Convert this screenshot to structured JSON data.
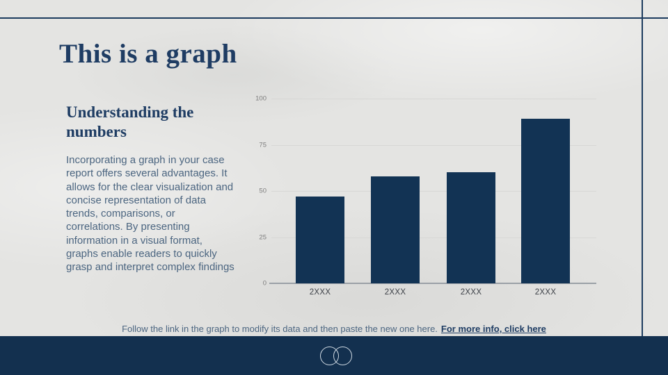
{
  "slide": {
    "title": "This is a graph",
    "section_heading": "Understanding the numbers",
    "body_text": "Incorporating a graph in your case report offers several advantages. It allows for the clear visualization and concise representation of data trends, comparisons, or correlations. By presenting information in a visual format, graphs enable readers to quickly grasp and interpret complex findings",
    "footer": {
      "note": "Follow the link in the graph to modify its data and then paste the new one here.",
      "link_text": "For more info, click here"
    }
  },
  "chart_data": {
    "type": "bar",
    "categories": [
      "2XXX",
      "2XXX",
      "2XXX",
      "2XXX"
    ],
    "values": [
      47,
      58,
      60,
      89
    ],
    "title": "",
    "xlabel": "",
    "ylabel": "",
    "ylim": [
      0,
      100
    ],
    "y_ticks": [
      0,
      25,
      50,
      75,
      100
    ],
    "grid": true,
    "legend": "none",
    "bar_color": "#123354"
  },
  "colors": {
    "background": "#e4e4e2",
    "accent_navy": "#1c3b5e",
    "title_text": "#1e3c63",
    "body_text": "#4b6580",
    "grid_line": "#d7d7d5",
    "axis_line": "#9aa0a6",
    "tick_label": "#7d7d7d",
    "category_label": "#3b3f46",
    "footer_bar": "#13304f",
    "logo_stroke": "#cfd9e2"
  },
  "logo": {
    "name": "overlapping-circles"
  }
}
